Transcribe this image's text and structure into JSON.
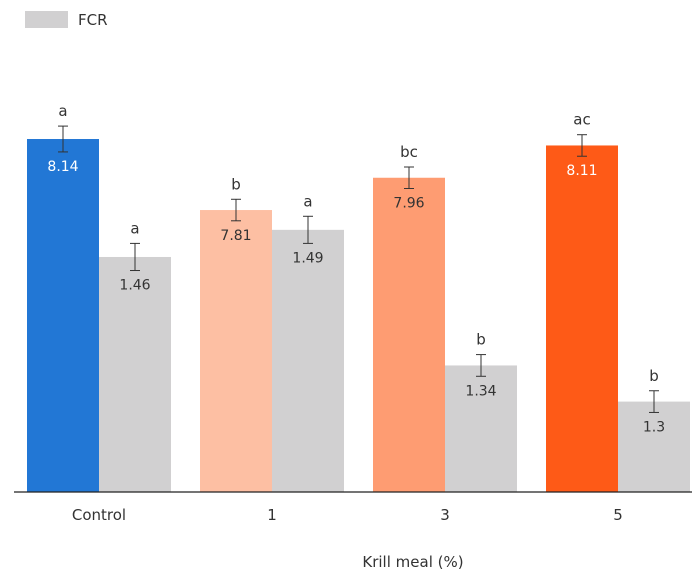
{
  "chart_data": {
    "type": "bar",
    "categories": [
      "Control",
      "1",
      "3",
      "5"
    ],
    "xlabel": "Krill meal (%)",
    "ylabel": "",
    "title": "",
    "legend": {
      "placement": "top-left",
      "entries": [
        "FCR"
      ]
    },
    "grid": false,
    "series": [
      {
        "values": [
          8.14,
          7.81,
          7.96,
          8.11
        ],
        "letters": [
          "a",
          "b",
          "bc",
          "ac"
        ],
        "colors": [
          "#2277d5",
          "#fdbfa3",
          "#fe9c72",
          "#fe5a17"
        ],
        "label_colors": [
          "#ffffff",
          "#333333",
          "#333333",
          "#ffffff"
        ],
        "value_labels": [
          "8.14",
          "7.81",
          "7.96",
          "8.11"
        ],
        "error": [
          0.06,
          0.05,
          0.05,
          0.05
        ],
        "ylim": [
          6.5,
          8.6
        ]
      },
      {
        "name": "FCR",
        "values": [
          1.46,
          1.49,
          1.34,
          1.3
        ],
        "letters": [
          "a",
          "a",
          "b",
          "b"
        ],
        "colors": [
          "#d1d0d1",
          "#d1d0d1",
          "#d1d0d1",
          "#d1d0d1"
        ],
        "label_colors": [
          "#333333",
          "#333333",
          "#333333",
          "#333333"
        ],
        "value_labels": [
          "1.46",
          "1.49",
          "1.34",
          "1.3"
        ],
        "error": [
          0.015,
          0.015,
          0.012,
          0.012
        ],
        "ylim": [
          1.2,
          1.7
        ]
      }
    ]
  }
}
